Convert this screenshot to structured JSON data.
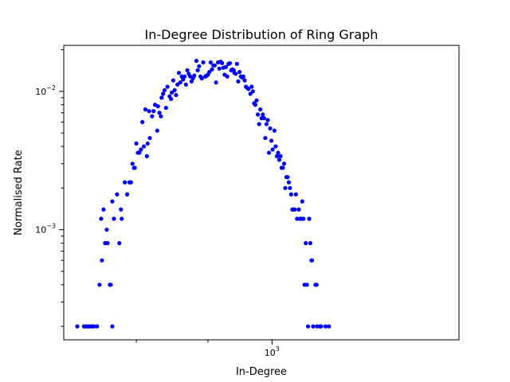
{
  "chart_data": {
    "type": "scatter",
    "title": "In-Degree Distribution of Ring Graph",
    "xlabel": "In-Degree",
    "ylabel": "Normalised Rate",
    "xscale": "log",
    "yscale": "log",
    "xlim": [
      710,
      1360
    ],
    "ylim": [
      0.00016,
      0.0215
    ],
    "grid": false,
    "marker_color": "#0000ff",
    "x_ticks": [
      {
        "value": 1000,
        "label": "10",
        "exp": "3"
      }
    ],
    "y_ticks": [
      {
        "value": 0.01,
        "label": "10",
        "exp": "−2"
      },
      {
        "value": 0.001,
        "label": "10",
        "exp": "−3"
      }
    ],
    "series": [
      {
        "points": [
          [
            726,
            0.0002
          ],
          [
            734,
            0.0002
          ],
          [
            736,
            0.0002
          ],
          [
            738,
            0.0002
          ],
          [
            740,
            0.0002
          ],
          [
            742,
            0.0002
          ],
          [
            744,
            0.0002
          ],
          [
            746,
            0.0002
          ],
          [
            750,
            0.0002
          ],
          [
            753,
            0.0004
          ],
          [
            755,
            0.0012
          ],
          [
            756,
            0.0006
          ],
          [
            758,
            0.0014
          ],
          [
            760,
            0.0008
          ],
          [
            762,
            0.001
          ],
          [
            763,
            0.0008
          ],
          [
            766,
            0.0004
          ],
          [
            767,
            0.0004
          ],
          [
            769,
            0.0002
          ],
          [
            769,
            0.0016
          ],
          [
            771,
            0.0012
          ],
          [
            775,
            0.0018
          ],
          [
            778,
            0.0008
          ],
          [
            780,
            0.0014
          ],
          [
            781,
            0.0012
          ],
          [
            785,
            0.0022
          ],
          [
            788,
            0.0018
          ],
          [
            791,
            0.0022
          ],
          [
            793,
            0.0022
          ],
          [
            795,
            0.003
          ],
          [
            797,
            0.0028
          ],
          [
            798,
            0.0028
          ],
          [
            800,
            0.0042
          ],
          [
            802,
            0.0036
          ],
          [
            804,
            0.0036
          ],
          [
            806,
            0.0038
          ],
          [
            808,
            0.006
          ],
          [
            810,
            0.004
          ],
          [
            812,
            0.0074
          ],
          [
            814,
            0.0034
          ],
          [
            815,
            0.0042
          ],
          [
            817,
            0.0072
          ],
          [
            818,
            0.0046
          ],
          [
            821,
            0.0066
          ],
          [
            823,
            0.0072
          ],
          [
            825,
            0.008
          ],
          [
            828,
            0.0052
          ],
          [
            829,
            0.0078
          ],
          [
            831,
            0.007
          ],
          [
            833,
            0.0066
          ],
          [
            834,
            0.009
          ],
          [
            836,
            0.0096
          ],
          [
            838,
            0.0102
          ],
          [
            840,
            0.0076
          ],
          [
            842,
            0.0108
          ],
          [
            845,
            0.0092
          ],
          [
            847,
            0.0088
          ],
          [
            848,
            0.0098
          ],
          [
            850,
            0.012
          ],
          [
            852,
            0.0102
          ],
          [
            854,
            0.0094
          ],
          [
            856,
            0.0112
          ],
          [
            858,
            0.0136
          ],
          [
            860,
            0.0116
          ],
          [
            862,
            0.0128
          ],
          [
            864,
            0.0122
          ],
          [
            866,
            0.0128
          ],
          [
            868,
            0.0112
          ],
          [
            870,
            0.0142
          ],
          [
            872,
            0.0134
          ],
          [
            874,
            0.0128
          ],
          [
            876,
            0.0118
          ],
          [
            878,
            0.0124
          ],
          [
            880,
            0.013
          ],
          [
            883,
            0.0166
          ],
          [
            885,
            0.0142
          ],
          [
            887,
            0.0152
          ],
          [
            889,
            0.0128
          ],
          [
            891,
            0.0124
          ],
          [
            893,
            0.0162
          ],
          [
            896,
            0.0128
          ],
          [
            898,
            0.013
          ],
          [
            900,
            0.0132
          ],
          [
            902,
            0.0138
          ],
          [
            904,
            0.0162
          ],
          [
            906,
            0.0144
          ],
          [
            908,
            0.0154
          ],
          [
            910,
            0.0154
          ],
          [
            912,
            0.0116
          ],
          [
            915,
            0.0162
          ],
          [
            917,
            0.0146
          ],
          [
            919,
            0.0164
          ],
          [
            921,
            0.016
          ],
          [
            923,
            0.0148
          ],
          [
            925,
            0.0132
          ],
          [
            927,
            0.015
          ],
          [
            929,
            0.0128
          ],
          [
            931,
            0.0158
          ],
          [
            933,
            0.016
          ],
          [
            935,
            0.0142
          ],
          [
            937,
            0.0144
          ],
          [
            939,
            0.0142
          ],
          [
            940,
            0.0136
          ],
          [
            942,
            0.0134
          ],
          [
            944,
            0.0158
          ],
          [
            946,
            0.0118
          ],
          [
            948,
            0.0138
          ],
          [
            950,
            0.0128
          ],
          [
            952,
            0.0126
          ],
          [
            954,
            0.0128
          ],
          [
            956,
            0.012
          ],
          [
            958,
            0.0108
          ],
          [
            960,
            0.0106
          ],
          [
            962,
            0.0104
          ],
          [
            965,
            0.0096
          ],
          [
            967,
            0.0108
          ],
          [
            969,
            0.01
          ],
          [
            971,
            0.0082
          ],
          [
            973,
            0.008
          ],
          [
            975,
            0.0086
          ],
          [
            977,
            0.0068
          ],
          [
            979,
            0.0058
          ],
          [
            981,
            0.0074
          ],
          [
            983,
            0.0064
          ],
          [
            985,
            0.0068
          ],
          [
            987,
            0.0064
          ],
          [
            989,
            0.0046
          ],
          [
            991,
            0.0058
          ],
          [
            993,
            0.0062
          ],
          [
            995,
            0.0036
          ],
          [
            997,
            0.0054
          ],
          [
            999,
            0.0044
          ],
          [
            1001,
            0.0038
          ],
          [
            1004,
            0.0052
          ],
          [
            1006,
            0.004
          ],
          [
            1008,
            0.0034
          ],
          [
            1010,
            0.0036
          ],
          [
            1012,
            0.0032
          ],
          [
            1014,
            0.0034
          ],
          [
            1016,
            0.0028
          ],
          [
            1018,
            0.0028
          ],
          [
            1020,
            0.003
          ],
          [
            1022,
            0.002
          ],
          [
            1024,
            0.0024
          ],
          [
            1026,
            0.0024
          ],
          [
            1028,
            0.0022
          ],
          [
            1030,
            0.002
          ],
          [
            1032,
            0.0018
          ],
          [
            1034,
            0.0014
          ],
          [
            1036,
            0.0014
          ],
          [
            1038,
            0.0014
          ],
          [
            1040,
            0.0018
          ],
          [
            1042,
            0.0012
          ],
          [
            1045,
            0.0014
          ],
          [
            1047,
            0.0012
          ],
          [
            1049,
            0.0012
          ],
          [
            1051,
            0.0016
          ],
          [
            1053,
            0.0012
          ],
          [
            1055,
            0.0004
          ],
          [
            1057,
            0.0008
          ],
          [
            1059,
            0.0004
          ],
          [
            1061,
            0.0002
          ],
          [
            1063,
            0.0012
          ],
          [
            1065,
            0.0008
          ],
          [
            1067,
            0.0006
          ],
          [
            1068,
            0.0006
          ],
          [
            1070,
            0.0002
          ],
          [
            1074,
            0.0004
          ],
          [
            1076,
            0.0004
          ],
          [
            1077,
            0.0002
          ],
          [
            1082,
            0.0002
          ],
          [
            1084,
            0.0002
          ],
          [
            1092,
            0.0002
          ],
          [
            1098,
            0.0002
          ]
        ]
      }
    ]
  }
}
